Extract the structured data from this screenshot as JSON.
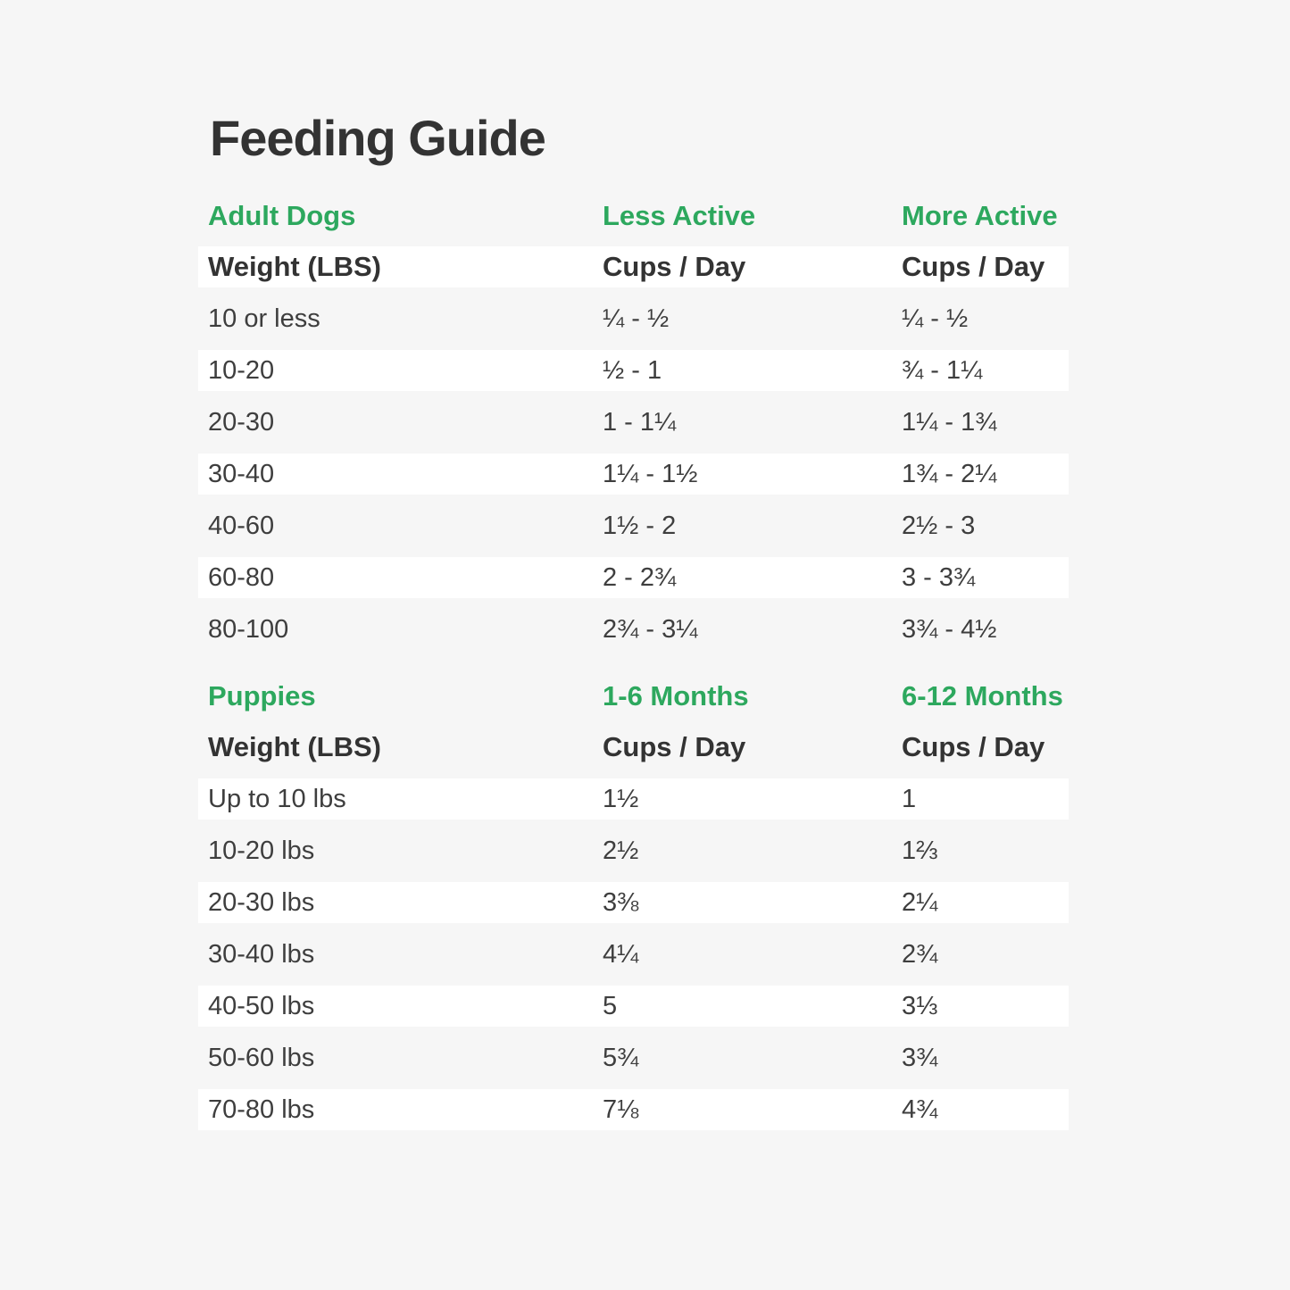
{
  "page": {
    "title": "Feeding Guide"
  },
  "colors": {
    "background": "#f6f6f6",
    "row_band_white": "#ffffff",
    "heading_dark": "#333333",
    "body_text": "#3e3e3e",
    "accent_green": "#2da85e"
  },
  "chart_data": [
    {
      "type": "table",
      "title": "Adult Dogs",
      "group_labels": [
        "Adult Dogs",
        "Less Active",
        "More Active"
      ],
      "columns": [
        "Weight (LBS)",
        "Cups / Day",
        "Cups / Day"
      ],
      "rows": [
        [
          "10 or less",
          "¼ - ½",
          "¼ - ½"
        ],
        [
          "10-20",
          "½ - 1",
          "¾ - 1¼"
        ],
        [
          "20-30",
          "1 - 1¼",
          "1¼ - 1¾"
        ],
        [
          "30-40",
          "1¼ - 1½",
          "1¾ - 2¼"
        ],
        [
          "40-60",
          "1½ - 2",
          "2½ - 3"
        ],
        [
          "60-80",
          "2 - 2¾",
          "3 - 3¾"
        ],
        [
          "80-100",
          "2¾ - 3¼",
          "3¾ - 4½"
        ]
      ]
    },
    {
      "type": "table",
      "title": "Puppies",
      "group_labels": [
        "Puppies",
        "1-6 Months",
        "6-12 Months"
      ],
      "columns": [
        "Weight (LBS)",
        "Cups / Day",
        "Cups / Day"
      ],
      "rows": [
        [
          "Up to 10 lbs",
          "1½",
          "1"
        ],
        [
          "10-20 lbs",
          "2½",
          "1⅔"
        ],
        [
          "20-30 lbs",
          "3⅜",
          "2¼"
        ],
        [
          "30-40 lbs",
          "4¼",
          "2¾"
        ],
        [
          "40-50 lbs",
          "5",
          "3⅓"
        ],
        [
          "50-60 lbs",
          "5¾",
          "3¾"
        ],
        [
          "70-80 lbs",
          "7⅛",
          "4¾"
        ]
      ]
    }
  ]
}
